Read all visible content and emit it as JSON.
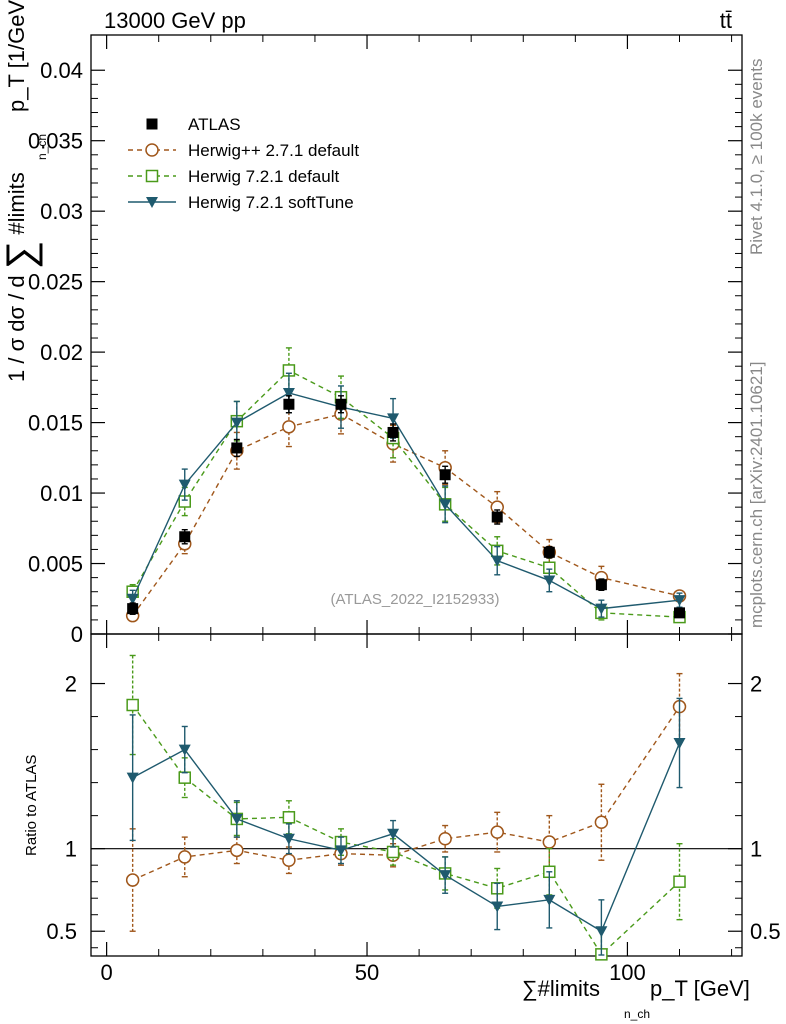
{
  "header": {
    "energy_label": "13000 GeV pp",
    "process_label": "tt̄"
  },
  "side_labels": {
    "rivet": "Rivet 4.1.0, ≥ 100k events",
    "mcplots": "mcplots.cern.ch [arXiv:2401.10621]"
  },
  "watermark": "(ATLAS_2022_I2152933)",
  "colors": {
    "atlas": "#000000",
    "herwig_pp": "#a0571b",
    "herwig_721_default": "#4a9a1a",
    "herwig_721_soft": "#1f5a6e"
  },
  "chart_data": [
    {
      "type": "line",
      "panel": "main",
      "title": "",
      "xlabel": "∑#limits p_T [GeV]",
      "xlabel_main": "∑#limits",
      "xlabel_sub": "n_ch",
      "xlabel_tail": "p_T [GeV]",
      "ylabel": "1 / σ dσ / d ∑#limits p_T [1/GeV]",
      "ylabel_main": "1 / σ dσ / d",
      "ylabel_sigma": "∑",
      "ylabel_limits": "#limits",
      "ylabel_sub": "n_ch",
      "ylabel_tail": "p_T [1/GeV]",
      "xlim": [
        -3,
        122
      ],
      "ylim": [
        0,
        0.0425
      ],
      "yticks": [
        0,
        0.005,
        0.01,
        0.015,
        0.02,
        0.025,
        0.03,
        0.035,
        0.04
      ],
      "ytick_labels": [
        "0",
        "0.005",
        "0.01",
        "0.015",
        "0.02",
        "0.025",
        "0.03",
        "0.035",
        "0.04"
      ],
      "legend_position": "top-left",
      "x": [
        5,
        15,
        25,
        35,
        45,
        55,
        65,
        75,
        85,
        95,
        110
      ],
      "series": [
        {
          "name": "ATLAS",
          "key": "atlas",
          "style": "square-filled",
          "values": [
            0.0018,
            0.0069,
            0.0132,
            0.0163,
            0.0163,
            0.0143,
            0.0113,
            0.0083,
            0.0058,
            0.0035,
            0.0015
          ],
          "errors": [
            0.0004,
            0.0005,
            0.0006,
            0.0006,
            0.0006,
            0.0006,
            0.0006,
            0.0005,
            0.0004,
            0.0004,
            0.0003
          ]
        },
        {
          "name": "Herwig++ 2.7.1 default",
          "key": "herwig_pp",
          "style": "circle-open-dashed",
          "values": [
            0.0013,
            0.0064,
            0.013,
            0.0147,
            0.0156,
            0.0135,
            0.0118,
            0.009,
            0.0058,
            0.004,
            0.0027
          ],
          "errors": [
            0.0003,
            0.0007,
            0.0013,
            0.0014,
            0.0014,
            0.0013,
            0.0012,
            0.0011,
            0.0009,
            0.0008,
            0.0003
          ]
        },
        {
          "name": "Herwig 7.2.1 default",
          "key": "herwig_721_default",
          "style": "square-open-dashed",
          "values": [
            0.003,
            0.0094,
            0.0151,
            0.0187,
            0.0168,
            0.0139,
            0.0092,
            0.0059,
            0.0047,
            0.0015,
            0.0012
          ],
          "errors": [
            0.0005,
            0.001,
            0.0014,
            0.0016,
            0.0015,
            0.0014,
            0.0012,
            0.001,
            0.0008,
            0.0005,
            0.0003
          ]
        },
        {
          "name": "Herwig 7.2.1 softTune",
          "key": "herwig_721_soft",
          "style": "triangle-down-filled-solid",
          "values": [
            0.0025,
            0.0106,
            0.015,
            0.0171,
            0.0161,
            0.0153,
            0.0092,
            0.0052,
            0.0038,
            0.0018,
            0.0024
          ],
          "errors": [
            0.0006,
            0.0011,
            0.0015,
            0.0014,
            0.0015,
            0.0014,
            0.0013,
            0.001,
            0.0008,
            0.0006,
            0.0005
          ]
        }
      ]
    },
    {
      "type": "line",
      "panel": "ratio",
      "ylabel": "Ratio to ATLAS",
      "xlim": [
        -3,
        122
      ],
      "ylim": [
        0.35,
        2.3
      ],
      "yticks": [
        0.5,
        1,
        2
      ],
      "ytick_labels": [
        "0.5",
        "1",
        "2"
      ],
      "xticks": [
        0,
        50,
        100
      ],
      "xtick_labels": [
        "0",
        "50",
        "100"
      ],
      "reference_line": 1,
      "x": [
        5,
        15,
        25,
        35,
        45,
        55,
        65,
        75,
        85,
        95,
        110
      ],
      "series": [
        {
          "name": "Herwig++ 2.7.1 default",
          "key": "herwig_pp",
          "style": "circle-open-dashed",
          "values": [
            0.81,
            0.95,
            0.99,
            0.93,
            0.97,
            0.96,
            1.06,
            1.1,
            1.04,
            1.16,
            1.86
          ],
          "errors": [
            0.31,
            0.12,
            0.08,
            0.08,
            0.07,
            0.07,
            0.08,
            0.12,
            0.16,
            0.23,
            0.2
          ]
        },
        {
          "name": "Herwig 7.2.1 default",
          "key": "herwig_721_default",
          "style": "square-open-dashed",
          "values": [
            1.87,
            1.43,
            1.18,
            1.19,
            1.04,
            0.98,
            0.85,
            0.76,
            0.86,
            0.36,
            0.8
          ],
          "errors": [
            0.3,
            0.12,
            0.1,
            0.1,
            0.08,
            0.08,
            0.1,
            0.12,
            0.14,
            0.15,
            0.23
          ]
        },
        {
          "name": "Herwig 7.2.1 softTune",
          "key": "herwig_721_soft",
          "style": "triangle-down-filled-solid",
          "values": [
            1.43,
            1.6,
            1.18,
            1.06,
            0.99,
            1.09,
            0.84,
            0.65,
            0.69,
            0.5,
            1.64
          ],
          "errors": [
            0.38,
            0.14,
            0.11,
            0.09,
            0.08,
            0.08,
            0.11,
            0.14,
            0.17,
            0.19,
            0.27
          ]
        }
      ]
    }
  ]
}
